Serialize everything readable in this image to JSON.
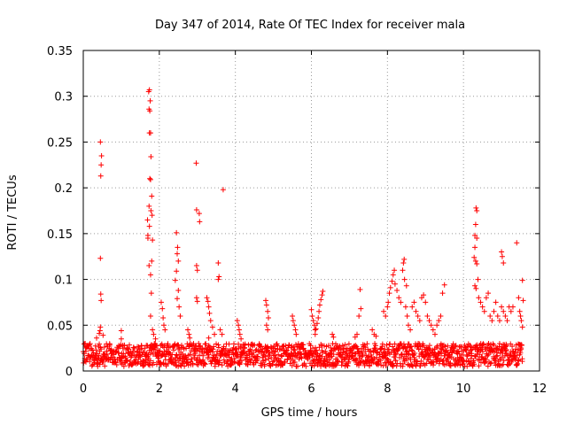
{
  "chart_data": {
    "type": "scatter",
    "title": "Day 347 of 2014, Rate Of TEC Index for receiver mala",
    "xlabel": "GPS time / hours",
    "ylabel": "ROTI / TECUs",
    "xlim": [
      0,
      12
    ],
    "ylim": [
      0,
      0.35
    ],
    "xticks": [
      0,
      2,
      4,
      6,
      8,
      10,
      12
    ],
    "xtick_labels": [
      "0",
      "2",
      "4",
      "6",
      "8",
      "10",
      "12"
    ],
    "yticks": [
      0,
      0.05,
      0.1,
      0.15,
      0.2,
      0.25,
      0.3,
      0.35
    ],
    "ytick_labels": [
      "0",
      "0.05",
      "0.1",
      "0.15",
      "0.2",
      "0.25",
      "0.3",
      "0.35"
    ],
    "grid": true,
    "marker": "plus",
    "color": "#ff0000",
    "baseline": {
      "x_start": 0,
      "x_end": 11.55,
      "y_min": 0.005,
      "y_max": 0.03
    },
    "series": [
      {
        "name": "ROTI",
        "points": [
          [
            0.45,
            0.25
          ],
          [
            0.48,
            0.235
          ],
          [
            0.47,
            0.225
          ],
          [
            0.46,
            0.213
          ],
          [
            0.45,
            0.123
          ],
          [
            0.46,
            0.084
          ],
          [
            0.47,
            0.077
          ],
          [
            0.45,
            0.048
          ],
          [
            0.44,
            0.044
          ],
          [
            0.42,
            0.041
          ],
          [
            0.52,
            0.039
          ],
          [
            0.35,
            0.036
          ],
          [
            1.0,
            0.044
          ],
          [
            1.0,
            0.035
          ],
          [
            1.72,
            0.305
          ],
          [
            1.74,
            0.307
          ],
          [
            1.76,
            0.295
          ],
          [
            1.73,
            0.286
          ],
          [
            1.75,
            0.284
          ],
          [
            1.74,
            0.26
          ],
          [
            1.77,
            0.26
          ],
          [
            1.78,
            0.234
          ],
          [
            1.75,
            0.21
          ],
          [
            1.77,
            0.209
          ],
          [
            1.8,
            0.191
          ],
          [
            1.73,
            0.18
          ],
          [
            1.78,
            0.175
          ],
          [
            1.69,
            0.165
          ],
          [
            1.81,
            0.17
          ],
          [
            1.74,
            0.158
          ],
          [
            1.7,
            0.148
          ],
          [
            1.7,
            0.145
          ],
          [
            1.82,
            0.143
          ],
          [
            1.73,
            0.115
          ],
          [
            1.8,
            0.12
          ],
          [
            1.77,
            0.105
          ],
          [
            1.79,
            0.085
          ],
          [
            1.77,
            0.06
          ],
          [
            1.82,
            0.045
          ],
          [
            1.85,
            0.04
          ],
          [
            1.9,
            0.035
          ],
          [
            2.05,
            0.075
          ],
          [
            2.08,
            0.068
          ],
          [
            2.1,
            0.058
          ],
          [
            2.12,
            0.05
          ],
          [
            2.15,
            0.045
          ],
          [
            2.45,
            0.151
          ],
          [
            2.48,
            0.135
          ],
          [
            2.47,
            0.128
          ],
          [
            2.5,
            0.12
          ],
          [
            2.45,
            0.109
          ],
          [
            2.42,
            0.099
          ],
          [
            2.5,
            0.088
          ],
          [
            2.47,
            0.079
          ],
          [
            2.52,
            0.07
          ],
          [
            2.55,
            0.06
          ],
          [
            2.75,
            0.045
          ],
          [
            2.78,
            0.04
          ],
          [
            2.8,
            0.036
          ],
          [
            2.97,
            0.227
          ],
          [
            2.98,
            0.176
          ],
          [
            3.05,
            0.172
          ],
          [
            3.06,
            0.163
          ],
          [
            2.98,
            0.115
          ],
          [
            3.0,
            0.11
          ],
          [
            2.98,
            0.08
          ],
          [
            3.0,
            0.076
          ],
          [
            3.25,
            0.08
          ],
          [
            3.28,
            0.076
          ],
          [
            3.3,
            0.07
          ],
          [
            3.32,
            0.063
          ],
          [
            3.35,
            0.055
          ],
          [
            3.4,
            0.048
          ],
          [
            3.45,
            0.04
          ],
          [
            3.3,
            0.036
          ],
          [
            3.55,
            0.118
          ],
          [
            3.57,
            0.103
          ],
          [
            3.55,
            0.1
          ],
          [
            3.6,
            0.045
          ],
          [
            3.65,
            0.04
          ],
          [
            3.68,
            0.198
          ],
          [
            4.05,
            0.055
          ],
          [
            4.08,
            0.05
          ],
          [
            4.1,
            0.045
          ],
          [
            4.12,
            0.04
          ],
          [
            4.15,
            0.035
          ],
          [
            4.8,
            0.077
          ],
          [
            4.82,
            0.072
          ],
          [
            4.85,
            0.065
          ],
          [
            4.87,
            0.058
          ],
          [
            4.82,
            0.05
          ],
          [
            4.85,
            0.045
          ],
          [
            5.5,
            0.06
          ],
          [
            5.52,
            0.055
          ],
          [
            5.55,
            0.05
          ],
          [
            5.58,
            0.045
          ],
          [
            5.6,
            0.04
          ],
          [
            6.0,
            0.067
          ],
          [
            6.02,
            0.06
          ],
          [
            6.05,
            0.055
          ],
          [
            6.08,
            0.05
          ],
          [
            6.1,
            0.045
          ],
          [
            6.3,
            0.087
          ],
          [
            6.28,
            0.083
          ],
          [
            6.25,
            0.078
          ],
          [
            6.22,
            0.072
          ],
          [
            6.2,
            0.065
          ],
          [
            6.18,
            0.058
          ],
          [
            6.15,
            0.052
          ],
          [
            6.12,
            0.046
          ],
          [
            6.1,
            0.04
          ],
          [
            6.55,
            0.04
          ],
          [
            6.58,
            0.037
          ],
          [
            7.28,
            0.089
          ],
          [
            7.3,
            0.068
          ],
          [
            7.25,
            0.06
          ],
          [
            7.2,
            0.04
          ],
          [
            7.15,
            0.037
          ],
          [
            7.6,
            0.045
          ],
          [
            7.65,
            0.04
          ],
          [
            7.7,
            0.038
          ],
          [
            7.95,
            0.06
          ],
          [
            7.9,
            0.065
          ],
          [
            8.0,
            0.07
          ],
          [
            8.02,
            0.075
          ],
          [
            8.05,
            0.085
          ],
          [
            8.08,
            0.091
          ],
          [
            8.12,
            0.098
          ],
          [
            8.15,
            0.105
          ],
          [
            8.18,
            0.11
          ],
          [
            8.2,
            0.095
          ],
          [
            8.25,
            0.088
          ],
          [
            8.3,
            0.08
          ],
          [
            8.35,
            0.075
          ],
          [
            8.4,
            0.11
          ],
          [
            8.42,
            0.118
          ],
          [
            8.44,
            0.122
          ],
          [
            8.45,
            0.1
          ],
          [
            8.5,
            0.093
          ],
          [
            8.48,
            0.07
          ],
          [
            8.52,
            0.06
          ],
          [
            8.55,
            0.05
          ],
          [
            8.6,
            0.045
          ],
          [
            8.65,
            0.07
          ],
          [
            8.7,
            0.075
          ],
          [
            8.75,
            0.065
          ],
          [
            8.8,
            0.06
          ],
          [
            8.85,
            0.055
          ],
          [
            8.9,
            0.08
          ],
          [
            8.95,
            0.083
          ],
          [
            9.0,
            0.075
          ],
          [
            9.05,
            0.06
          ],
          [
            9.1,
            0.055
          ],
          [
            9.15,
            0.05
          ],
          [
            9.2,
            0.045
          ],
          [
            9.25,
            0.04
          ],
          [
            9.5,
            0.094
          ],
          [
            9.45,
            0.085
          ],
          [
            9.4,
            0.06
          ],
          [
            9.35,
            0.055
          ],
          [
            9.3,
            0.05
          ],
          [
            10.33,
            0.178
          ],
          [
            10.35,
            0.175
          ],
          [
            10.32,
            0.16
          ],
          [
            10.3,
            0.148
          ],
          [
            10.35,
            0.145
          ],
          [
            10.3,
            0.135
          ],
          [
            10.28,
            0.124
          ],
          [
            10.32,
            0.12
          ],
          [
            10.35,
            0.117
          ],
          [
            10.38,
            0.1
          ],
          [
            10.3,
            0.093
          ],
          [
            10.33,
            0.09
          ],
          [
            10.4,
            0.08
          ],
          [
            10.45,
            0.075
          ],
          [
            10.5,
            0.07
          ],
          [
            10.55,
            0.065
          ],
          [
            10.6,
            0.08
          ],
          [
            10.65,
            0.085
          ],
          [
            10.7,
            0.06
          ],
          [
            10.75,
            0.055
          ],
          [
            10.8,
            0.065
          ],
          [
            10.85,
            0.075
          ],
          [
            10.9,
            0.06
          ],
          [
            10.95,
            0.055
          ],
          [
            11.0,
            0.07
          ],
          [
            11.05,
            0.065
          ],
          [
            11.1,
            0.06
          ],
          [
            11.15,
            0.055
          ],
          [
            11.2,
            0.07
          ],
          [
            11.25,
            0.065
          ],
          [
            11.3,
            0.07
          ],
          [
            11.0,
            0.13
          ],
          [
            11.02,
            0.125
          ],
          [
            11.05,
            0.118
          ],
          [
            11.4,
            0.14
          ],
          [
            11.45,
            0.08
          ],
          [
            11.48,
            0.065
          ],
          [
            11.5,
            0.06
          ],
          [
            11.55,
            0.099
          ],
          [
            11.57,
            0.077
          ],
          [
            11.52,
            0.055
          ],
          [
            11.55,
            0.048
          ]
        ]
      }
    ]
  }
}
